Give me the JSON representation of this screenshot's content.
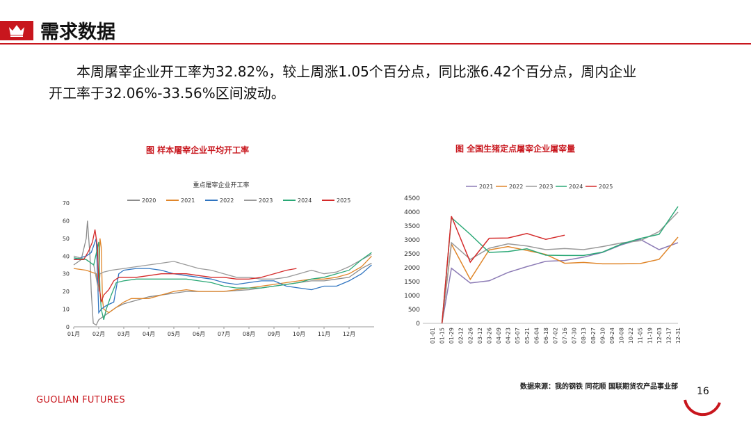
{
  "header": {
    "title": "需求数据"
  },
  "paragraph": {
    "line1": "本周屠宰企业开工率为32.82%，较上周涨1.05个百分点，同比涨6.42个百分点，周内企业",
    "line2": "开工率于32.06%-33.56%区间波动。"
  },
  "captions": {
    "left": "图    样本屠宰企业平均开工率",
    "right": "图  全国生猪定点屠宰企业屠宰量"
  },
  "footer": {
    "source": "数据来源：我的钢铁  同花顺  国联期货农产品事业部",
    "brand_bold": "GUOLIAN",
    "brand_light": "FUTURES",
    "page_number": "16"
  },
  "colors": {
    "accent": "#c8161d"
  },
  "chart_data": [
    {
      "type": "line",
      "title": "重点屠宰企业开工率",
      "ylim": [
        0,
        70
      ],
      "yticks": [
        0,
        10,
        20,
        30,
        40,
        50,
        60,
        70
      ],
      "categories": [
        "01月",
        "02月",
        "03月",
        "04月",
        "05月",
        "06月",
        "07月",
        "08月",
        "09月",
        "10月",
        "11月",
        "12月"
      ],
      "legend_position": "top",
      "series": [
        {
          "name": "2020",
          "color": "#8c8c8c",
          "points": [
            [
              0,
              35
            ],
            [
              0.3,
              38
            ],
            [
              0.5,
              50
            ],
            [
              0.55,
              60
            ],
            [
              0.65,
              40
            ],
            [
              0.7,
              20
            ],
            [
              0.78,
              2
            ],
            [
              0.9,
              1
            ],
            [
              1.0,
              4
            ],
            [
              1.2,
              6
            ],
            [
              1.4,
              8
            ],
            [
              1.7,
              11
            ],
            [
              2.0,
              13
            ],
            [
              2.5,
              15
            ],
            [
              3.0,
              17
            ],
            [
              3.5,
              18
            ],
            [
              4.0,
              19
            ],
            [
              4.5,
              20
            ],
            [
              5.0,
              20
            ],
            [
              6.0,
              20
            ],
            [
              7.0,
              21
            ],
            [
              8.0,
              23
            ],
            [
              8.5,
              24
            ],
            [
              9.0,
              25
            ],
            [
              9.5,
              26
            ],
            [
              10.0,
              26
            ],
            [
              10.5,
              27
            ],
            [
              11.0,
              28
            ],
            [
              11.5,
              33
            ],
            [
              11.9,
              36
            ]
          ]
        },
        {
          "name": "2021",
          "color": "#e0862a",
          "points": [
            [
              0,
              33
            ],
            [
              0.5,
              32
            ],
            [
              0.9,
              30
            ],
            [
              1.0,
              20
            ],
            [
              1.05,
              50
            ],
            [
              1.1,
              45
            ],
            [
              1.15,
              15
            ],
            [
              1.2,
              10
            ],
            [
              1.4,
              8
            ],
            [
              1.8,
              12
            ],
            [
              2.0,
              14
            ],
            [
              2.3,
              16
            ],
            [
              3.0,
              16
            ],
            [
              3.5,
              18
            ],
            [
              4.0,
              20
            ],
            [
              4.5,
              21
            ],
            [
              5.0,
              20
            ],
            [
              5.5,
              20
            ],
            [
              6.0,
              20
            ],
            [
              6.5,
              21
            ],
            [
              7.0,
              22
            ],
            [
              7.5,
              23
            ],
            [
              8.0,
              24
            ],
            [
              8.5,
              25
            ],
            [
              9.0,
              26
            ],
            [
              9.5,
              27
            ],
            [
              10.0,
              27
            ],
            [
              10.5,
              28
            ],
            [
              11.0,
              30
            ],
            [
              11.5,
              34
            ],
            [
              11.9,
              40
            ]
          ]
        },
        {
          "name": "2022",
          "color": "#2f74c0",
          "points": [
            [
              0,
              38
            ],
            [
              0.5,
              40
            ],
            [
              0.7,
              42
            ],
            [
              0.9,
              50
            ],
            [
              1.0,
              8
            ],
            [
              1.1,
              10
            ],
            [
              1.3,
              12
            ],
            [
              1.6,
              14
            ],
            [
              1.8,
              30
            ],
            [
              2.0,
              32
            ],
            [
              2.5,
              33
            ],
            [
              3.0,
              33
            ],
            [
              3.5,
              32
            ],
            [
              4.0,
              30
            ],
            [
              4.5,
              29
            ],
            [
              5.0,
              28
            ],
            [
              5.5,
              27
            ],
            [
              6.0,
              25
            ],
            [
              6.5,
              24
            ],
            [
              7.0,
              25
            ],
            [
              7.5,
              26
            ],
            [
              8.0,
              26
            ],
            [
              8.5,
              23
            ],
            [
              9.0,
              22
            ],
            [
              9.5,
              21
            ],
            [
              10.0,
              23
            ],
            [
              10.5,
              23
            ],
            [
              11.0,
              26
            ],
            [
              11.5,
              30
            ],
            [
              11.9,
              35
            ]
          ]
        },
        {
          "name": "2023",
          "color": "#9a9a9a",
          "points": [
            [
              0,
              40
            ],
            [
              0.5,
              38
            ],
            [
              0.8,
              35
            ],
            [
              1.0,
              20
            ],
            [
              1.05,
              30
            ],
            [
              1.2,
              31
            ],
            [
              1.5,
              32
            ],
            [
              2.0,
              33
            ],
            [
              2.5,
              34
            ],
            [
              3.0,
              35
            ],
            [
              3.5,
              36
            ],
            [
              4.0,
              37
            ],
            [
              4.5,
              35
            ],
            [
              5.0,
              33
            ],
            [
              5.5,
              32
            ],
            [
              6.0,
              30
            ],
            [
              6.5,
              28
            ],
            [
              7.0,
              28
            ],
            [
              7.5,
              27
            ],
            [
              8.0,
              27
            ],
            [
              8.5,
              28
            ],
            [
              9.0,
              30
            ],
            [
              9.5,
              32
            ],
            [
              10.0,
              30
            ],
            [
              10.5,
              31
            ],
            [
              11.0,
              34
            ],
            [
              11.5,
              38
            ],
            [
              11.9,
              41
            ]
          ]
        },
        {
          "name": "2024",
          "color": "#2aa876",
          "points": [
            [
              0,
              39
            ],
            [
              0.5,
              38
            ],
            [
              0.8,
              35
            ],
            [
              1.0,
              48
            ],
            [
              1.05,
              20
            ],
            [
              1.1,
              10
            ],
            [
              1.2,
              4
            ],
            [
              1.3,
              10
            ],
            [
              1.5,
              18
            ],
            [
              1.7,
              25
            ],
            [
              2.0,
              26
            ],
            [
              2.5,
              27
            ],
            [
              3.0,
              27
            ],
            [
              3.5,
              27
            ],
            [
              4.0,
              27
            ],
            [
              4.5,
              27
            ],
            [
              5.0,
              26
            ],
            [
              5.5,
              25
            ],
            [
              6.0,
              23
            ],
            [
              6.5,
              22
            ],
            [
              7.0,
              22
            ],
            [
              7.5,
              22
            ],
            [
              8.0,
              23
            ],
            [
              8.5,
              24
            ],
            [
              9.0,
              25
            ],
            [
              9.5,
              27
            ],
            [
              10.0,
              28
            ],
            [
              10.5,
              30
            ],
            [
              11.0,
              32
            ],
            [
              11.5,
              38
            ],
            [
              11.9,
              42
            ]
          ]
        },
        {
          "name": "2025",
          "color": "#d42a2a",
          "points": [
            [
              0,
              38
            ],
            [
              0.4,
              38
            ],
            [
              0.6,
              43
            ],
            [
              0.75,
              48
            ],
            [
              0.85,
              55
            ],
            [
              0.95,
              45
            ],
            [
              1.0,
              25
            ],
            [
              1.1,
              14
            ],
            [
              1.2,
              18
            ],
            [
              1.4,
              21
            ],
            [
              1.6,
              26
            ],
            [
              1.8,
              28
            ],
            [
              2.0,
              28
            ],
            [
              2.5,
              28
            ],
            [
              3.0,
              29
            ],
            [
              3.5,
              30
            ],
            [
              4.0,
              30
            ],
            [
              4.5,
              30
            ],
            [
              5.0,
              29
            ],
            [
              5.5,
              28
            ],
            [
              6.0,
              28
            ],
            [
              6.5,
              27
            ],
            [
              7.0,
              27
            ],
            [
              7.5,
              28
            ],
            [
              8.0,
              30
            ],
            [
              8.5,
              32
            ],
            [
              8.9,
              33
            ]
          ]
        }
      ]
    },
    {
      "type": "line",
      "title": "",
      "ylim": [
        0,
        4500
      ],
      "yticks": [
        0,
        500,
        1000,
        1500,
        2000,
        2500,
        3000,
        3500,
        4000,
        4500
      ],
      "categories": [
        "01-01",
        "01-15",
        "01-29",
        "02-12",
        "02-26",
        "03-12",
        "03-26",
        "04-09",
        "04-23",
        "05-07",
        "05-21",
        "06-04",
        "06-18",
        "07-02",
        "07-16",
        "07-30",
        "08-13",
        "08-27",
        "09-10",
        "09-24",
        "10-08",
        "10-22",
        "11-05",
        "11-19",
        "12-03",
        "12-17",
        "12-31"
      ],
      "legend_position": "top",
      "series": [
        {
          "name": "2021",
          "color": "#8c7bb5",
          "points": [
            [
              1,
              0
            ],
            [
              2,
              1980
            ],
            [
              4,
              1450
            ],
            [
              6,
              1530
            ],
            [
              8,
              1830
            ],
            [
              10,
              2040
            ],
            [
              12,
              2230
            ],
            [
              14,
              2260
            ],
            [
              16,
              2380
            ],
            [
              18,
              2550
            ],
            [
              20,
              2820
            ],
            [
              22,
              3020
            ],
            [
              24,
              2650
            ],
            [
              26,
              2900
            ]
          ]
        },
        {
          "name": "2022",
          "color": "#e0862a",
          "points": [
            [
              1,
              0
            ],
            [
              2,
              2850
            ],
            [
              4,
              1580
            ],
            [
              6,
              2640
            ],
            [
              8,
              2760
            ],
            [
              10,
              2620
            ],
            [
              12,
              2480
            ],
            [
              14,
              2160
            ],
            [
              16,
              2190
            ],
            [
              18,
              2140
            ],
            [
              20,
              2140
            ],
            [
              22,
              2150
            ],
            [
              24,
              2300
            ],
            [
              26,
              3100
            ]
          ]
        },
        {
          "name": "2023",
          "color": "#9a9a9a",
          "points": [
            [
              1,
              0
            ],
            [
              2,
              2900
            ],
            [
              4,
              2300
            ],
            [
              6,
              2700
            ],
            [
              8,
              2860
            ],
            [
              10,
              2780
            ],
            [
              12,
              2650
            ],
            [
              14,
              2690
            ],
            [
              16,
              2650
            ],
            [
              18,
              2760
            ],
            [
              20,
              2890
            ],
            [
              22,
              2970
            ],
            [
              24,
              3300
            ],
            [
              26,
              4000
            ]
          ]
        },
        {
          "name": "2024",
          "color": "#2aa876",
          "points": [
            [
              1,
              0
            ],
            [
              2,
              3800
            ],
            [
              4,
              3200
            ],
            [
              6,
              2550
            ],
            [
              8,
              2580
            ],
            [
              10,
              2680
            ],
            [
              12,
              2450
            ],
            [
              14,
              2440
            ],
            [
              16,
              2440
            ],
            [
              18,
              2560
            ],
            [
              20,
              2850
            ],
            [
              22,
              3050
            ],
            [
              24,
              3200
            ],
            [
              26,
              4200
            ]
          ]
        },
        {
          "name": "2025",
          "color": "#d42a2a",
          "points": [
            [
              1,
              0
            ],
            [
              2,
              3850
            ],
            [
              4,
              2200
            ],
            [
              6,
              3060
            ],
            [
              8,
              3070
            ],
            [
              10,
              3230
            ],
            [
              12,
              3020
            ],
            [
              14,
              3170
            ]
          ]
        }
      ]
    }
  ]
}
